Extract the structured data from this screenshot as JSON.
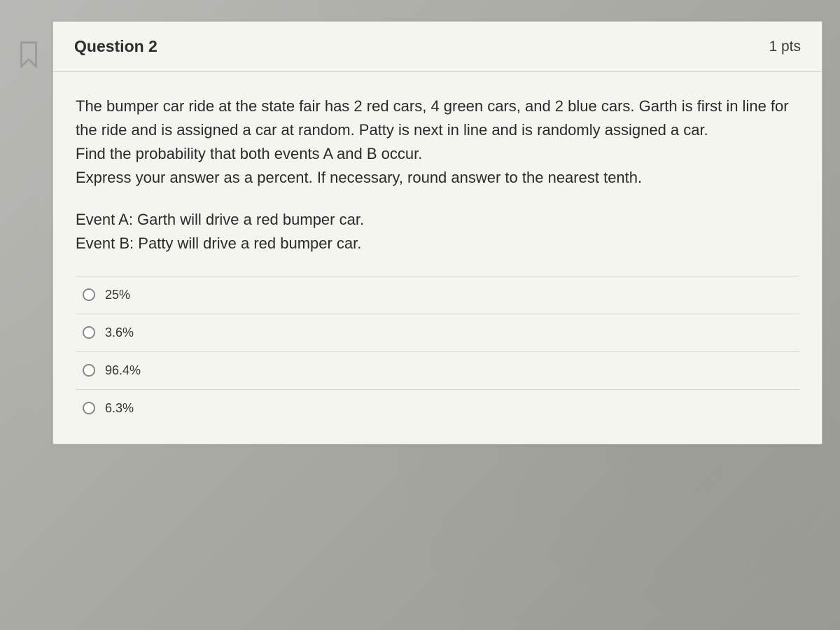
{
  "question": {
    "header": {
      "title": "Question 2",
      "points": "1 pts"
    },
    "text": "The bumper car ride at the state fair has 2 red cars, 4 green cars, and 2 blue cars. Garth is first in line for the ride and is assigned a car at random. Patty is next in line and is randomly assigned a car.\nFind the probability that both events A and B occur.\nExpress your answer as a percent. If necessary, round answer to the nearest tenth.",
    "events": "Event A: Garth will drive a red bumper car.\nEvent B: Patty will drive a red bumper car.",
    "options": [
      {
        "label": "25%"
      },
      {
        "label": "3.6%"
      },
      {
        "label": "96.4%"
      },
      {
        "label": "6.3%"
      }
    ]
  },
  "colors": {
    "card_bg": "#f5f5f0",
    "border": "#bfbfb8",
    "divider": "#d8d8d2",
    "text": "#2a2a2a",
    "icon": "#999999"
  }
}
